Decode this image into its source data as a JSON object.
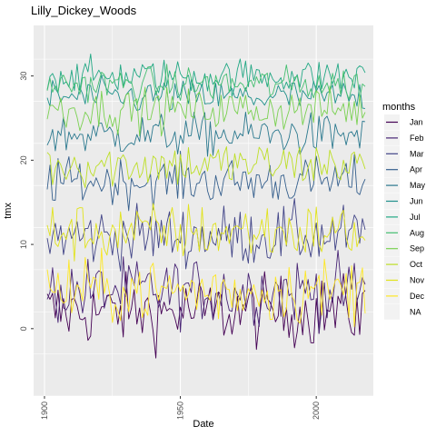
{
  "chart_data": {
    "type": "line",
    "title": "Lilly_Dickey_Woods",
    "xlabel": "Date",
    "ylabel": "tmx",
    "xlim": [
      1896,
      2021
    ],
    "ylim": [
      -8,
      36
    ],
    "x_start_year": 1901,
    "x_end_year": 2018,
    "x_ticks": [
      1900,
      1950,
      2000
    ],
    "x_tick_labels": [
      "1900",
      "1950",
      "2000"
    ],
    "y_ticks": [
      0,
      10,
      20,
      30
    ],
    "y_tick_labels": [
      "0",
      "10",
      "20",
      "30"
    ],
    "grid": true,
    "legend": {
      "title": "months",
      "position": "right",
      "entries": [
        "Jan",
        "Feb",
        "Mar",
        "Apr",
        "May",
        "Jun",
        "Jul",
        "Aug",
        "Sep",
        "Oct",
        "Nov",
        "Dec",
        "NA"
      ]
    },
    "series": [
      {
        "label": "Jan",
        "mean": 2.0,
        "spread": 3.0,
        "color": "#440154"
      },
      {
        "label": "Feb",
        "mean": 4.5,
        "spread": 2.8,
        "color": "#482475"
      },
      {
        "label": "Mar",
        "mean": 11.0,
        "spread": 2.6,
        "color": "#414487"
      },
      {
        "label": "Apr",
        "mean": 17.5,
        "spread": 2.0,
        "color": "#355f8d"
      },
      {
        "label": "May",
        "mean": 23.0,
        "spread": 1.8,
        "color": "#2a788e"
      },
      {
        "label": "Jun",
        "mean": 27.5,
        "spread": 1.5,
        "color": "#21918c"
      },
      {
        "label": "Jul",
        "mean": 30.0,
        "spread": 1.5,
        "color": "#22a884"
      },
      {
        "label": "Aug",
        "mean": 29.0,
        "spread": 1.5,
        "color": "#44bf70"
      },
      {
        "label": "Sep",
        "mean": 26.0,
        "spread": 1.8,
        "color": "#7ad151"
      },
      {
        "label": "Oct",
        "mean": 19.5,
        "spread": 2.0,
        "color": "#bddf26"
      },
      {
        "label": "Nov",
        "mean": 11.5,
        "spread": 2.5,
        "color": "#e1e31c"
      },
      {
        "label": "Dec",
        "mean": 4.5,
        "spread": 2.8,
        "color": "#fde725"
      }
    ],
    "na_color": "#7f7f7f"
  }
}
